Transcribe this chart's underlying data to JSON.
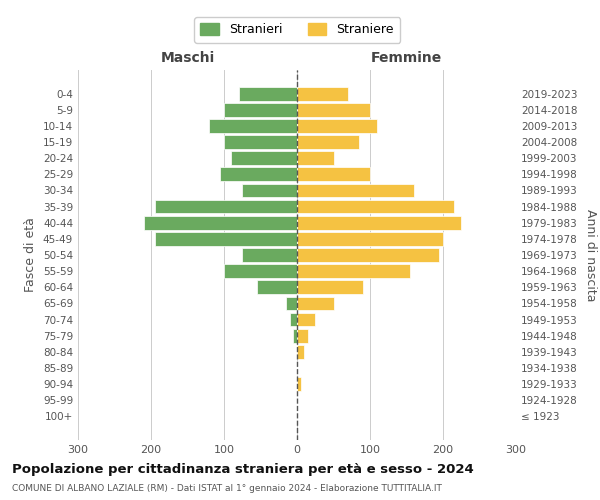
{
  "age_groups": [
    "0-4",
    "5-9",
    "10-14",
    "15-19",
    "20-24",
    "25-29",
    "30-34",
    "35-39",
    "40-44",
    "45-49",
    "50-54",
    "55-59",
    "60-64",
    "65-69",
    "70-74",
    "75-79",
    "80-84",
    "85-89",
    "90-94",
    "95-99",
    "100+"
  ],
  "birth_years": [
    "2019-2023",
    "2014-2018",
    "2009-2013",
    "2004-2008",
    "1999-2003",
    "1994-1998",
    "1989-1993",
    "1984-1988",
    "1979-1983",
    "1974-1978",
    "1969-1973",
    "1964-1968",
    "1959-1963",
    "1954-1958",
    "1949-1953",
    "1944-1948",
    "1939-1943",
    "1934-1938",
    "1929-1933",
    "1924-1928",
    "≤ 1923"
  ],
  "males": [
    80,
    100,
    120,
    100,
    90,
    105,
    75,
    195,
    210,
    195,
    75,
    100,
    55,
    15,
    10,
    5,
    0,
    0,
    0,
    0,
    0
  ],
  "females": [
    70,
    100,
    110,
    85,
    50,
    100,
    160,
    215,
    225,
    200,
    195,
    155,
    90,
    50,
    25,
    15,
    10,
    0,
    5,
    0,
    0
  ],
  "male_color": "#6aaa5f",
  "female_color": "#f5c242",
  "center_line_color": "#555555",
  "grid_color": "#cccccc",
  "background_color": "#ffffff",
  "title": "Popolazione per cittadinanza straniera per età e sesso - 2024",
  "subtitle": "COMUNE DI ALBANO LAZIALE (RM) - Dati ISTAT al 1° gennaio 2024 - Elaborazione TUTTITALIA.IT",
  "ylabel_left": "Fasce di età",
  "ylabel_right": "Anni di nascita",
  "legend_male": "Stranieri",
  "legend_female": "Straniere",
  "xlim": 300,
  "xticks": [
    -300,
    -200,
    -100,
    0,
    100,
    200,
    300
  ]
}
